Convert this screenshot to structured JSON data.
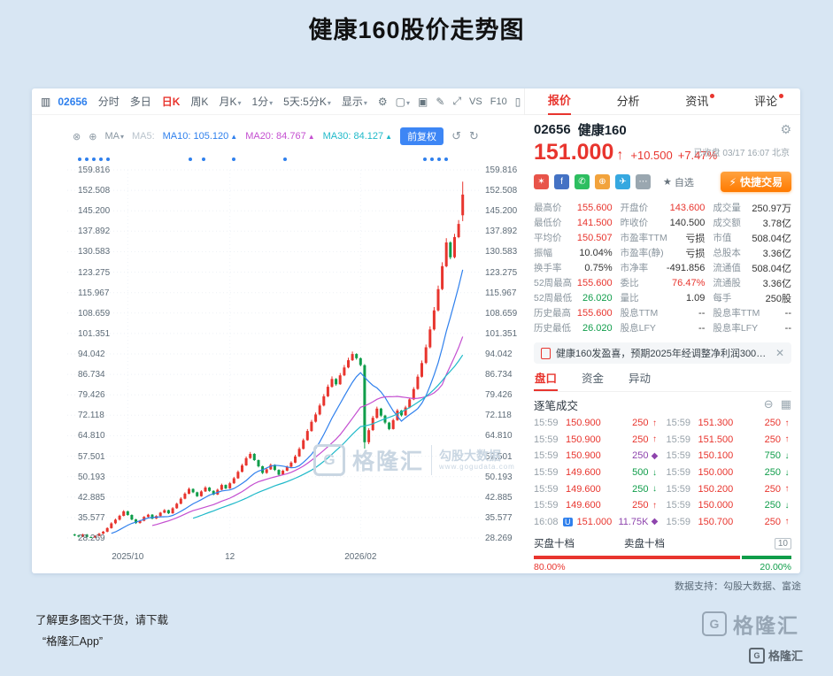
{
  "page": {
    "title": "健康160股价走势图"
  },
  "colors": {
    "red": "#e8352e",
    "green": "#0f9d4a",
    "blue": "#2f80ed",
    "purple": "#8e44ad",
    "orange": "#ff7a00"
  },
  "icons": {
    "window": "▥",
    "gear": "⚙",
    "box": "▢",
    "camera": "▣",
    "pencil": "✎",
    "expand": "⤢",
    "phone": "▯",
    "caret": "▾",
    "eye_a": "⊗",
    "eye_b": "⊕",
    "undo": "↺",
    "redo": "↻",
    "tri_up": "▲",
    "up_arrow": "↑",
    "minus_circle": "⊖",
    "grid": "▦",
    "close": "✕",
    "star": "★",
    "bolt": "⚡",
    "g_logo": "G"
  },
  "chart_toolbar": {
    "items": [
      {
        "label": "02656",
        "blue": true
      },
      {
        "label": "分时"
      },
      {
        "label": "多日"
      },
      {
        "label": "日K",
        "active": true
      },
      {
        "label": "周K"
      },
      {
        "label": "月K",
        "caret": true
      },
      {
        "label": "1分",
        "caret": true
      },
      {
        "label": "5天:5分K",
        "caret": true
      },
      {
        "label": "显示",
        "caret": true
      }
    ],
    "vs_label": "VS",
    "f10_label": "F10"
  },
  "right_tabs": [
    {
      "label": "报价",
      "active": true
    },
    {
      "label": "分析"
    },
    {
      "label": "资讯",
      "dot": true
    },
    {
      "label": "评论",
      "dot": true
    }
  ],
  "quote": {
    "code": "02656",
    "name": "健康160",
    "price": "151.000",
    "change": "+10.500",
    "change_pct": "+7.47%",
    "status": "已收盘 03/17 16:07 北京",
    "watchlist_label": "自选",
    "quick_trade_label": "快捷交易",
    "share_icons": [
      {
        "bg": "#e8544a",
        "glyph": "✶"
      },
      {
        "bg": "#4472c4",
        "glyph": "f"
      },
      {
        "bg": "#2dbe60",
        "glyph": "✆"
      },
      {
        "bg": "#f2a33c",
        "glyph": "⊕"
      },
      {
        "bg": "#36a8e0",
        "glyph": "✈"
      },
      {
        "bg": "#9aa7b0",
        "glyph": "⋯"
      }
    ],
    "stats_rows": [
      [
        {
          "l": "最高价",
          "v": "155.600",
          "c": "r"
        },
        {
          "l": "开盘价",
          "v": "143.600",
          "c": "r"
        },
        {
          "l": "成交量",
          "v": "250.97万",
          "c": "d"
        }
      ],
      [
        {
          "l": "最低价",
          "v": "141.500",
          "c": "r"
        },
        {
          "l": "昨收价",
          "v": "140.500",
          "c": "d"
        },
        {
          "l": "成交额",
          "v": "3.78亿",
          "c": "d"
        }
      ],
      [
        {
          "l": "平均价",
          "v": "150.507",
          "c": "r"
        },
        {
          "l": "市盈率TTM",
          "v": "亏损",
          "c": "d"
        },
        {
          "l": "市值",
          "v": "508.04亿",
          "c": "d"
        }
      ],
      [
        {
          "l": "振幅",
          "v": "10.04%",
          "c": "d"
        },
        {
          "l": "市盈率(静)",
          "v": "亏损",
          "c": "d"
        },
        {
          "l": "总股本",
          "v": "3.36亿",
          "c": "d"
        }
      ],
      [
        {
          "l": "换手率",
          "v": "0.75%",
          "c": "d"
        },
        {
          "l": "市净率",
          "v": "-491.856",
          "c": "d"
        },
        {
          "l": "流通值",
          "v": "508.04亿",
          "c": "d"
        }
      ],
      [
        {
          "l": "52周最高",
          "v": "155.600",
          "c": "r"
        },
        {
          "l": "委比",
          "v": "76.47%",
          "c": "r"
        },
        {
          "l": "流通股",
          "v": "3.36亿",
          "c": "d"
        }
      ],
      [
        {
          "l": "52周最低",
          "v": "26.020",
          "c": "g"
        },
        {
          "l": "量比",
          "v": "1.09",
          "c": "d"
        },
        {
          "l": "每手",
          "v": "250股",
          "c": "d"
        }
      ],
      [
        {
          "l": "历史最高",
          "v": "155.600",
          "c": "r"
        },
        {
          "l": "股息TTM",
          "v": "--",
          "c": "d"
        },
        {
          "l": "股息率TTM",
          "v": "--",
          "c": "d"
        }
      ],
      [
        {
          "l": "历史最低",
          "v": "26.020",
          "c": "g"
        },
        {
          "l": "股息LFY",
          "v": "--",
          "c": "d"
        },
        {
          "l": "股息率LFY",
          "v": "--",
          "c": "d"
        }
      ]
    ],
    "news": "健康160发盈喜，预期2025年经调整净利润300万…",
    "subtabs": [
      {
        "label": "盘口",
        "active": true
      },
      {
        "label": "资金"
      },
      {
        "label": "异动"
      }
    ],
    "trades_title": "逐笔成交",
    "trades_left": [
      {
        "t": "15:59",
        "p": "150.900",
        "v": "250",
        "d": "up"
      },
      {
        "t": "15:59",
        "p": "150.900",
        "v": "250",
        "d": "up"
      },
      {
        "t": "15:59",
        "p": "150.900",
        "v": "250",
        "d": "neutral"
      },
      {
        "t": "15:59",
        "p": "149.600",
        "v": "500",
        "d": "down"
      },
      {
        "t": "15:59",
        "p": "149.600",
        "v": "250",
        "d": "down"
      },
      {
        "t": "15:59",
        "p": "149.600",
        "v": "250",
        "d": "up"
      },
      {
        "t": "16:08",
        "badge": "U",
        "p": "151.000",
        "v": "11.75K",
        "d": "neutral"
      }
    ],
    "trades_right": [
      {
        "t": "15:59",
        "p": "151.300",
        "v": "250",
        "d": "up"
      },
      {
        "t": "15:59",
        "p": "151.500",
        "v": "250",
        "d": "up"
      },
      {
        "t": "15:59",
        "p": "150.100",
        "v": "750",
        "d": "down"
      },
      {
        "t": "15:59",
        "p": "150.000",
        "v": "250",
        "d": "down"
      },
      {
        "t": "15:59",
        "p": "150.200",
        "v": "250",
        "d": "up"
      },
      {
        "t": "15:59",
        "p": "150.000",
        "v": "250",
        "d": "down"
      },
      {
        "t": "15:59",
        "p": "150.700",
        "v": "250",
        "d": "up"
      }
    ],
    "depth": {
      "buy_label": "买盘十档",
      "sell_label": "卖盘十档",
      "levels_badge": "10",
      "buy_pct": "80.00%",
      "sell_pct": "20.00%",
      "buy_ratio": 0.8
    }
  },
  "chart_data": {
    "type": "candlestick",
    "title": "健康160股价走势图",
    "legend": {
      "ma_label": "MA",
      "ma5_label": "MA5:",
      "ma10_label": "MA10:",
      "ma10": "105.120",
      "ma20_label": "MA20:",
      "ma20": "84.767",
      "ma30_label": "MA30:",
      "ma30": "84.127",
      "adjust_label": "前复权"
    },
    "y_ticks": [
      "159.816",
      "152.508",
      "145.200",
      "137.892",
      "130.583",
      "123.275",
      "115.967",
      "108.659",
      "101.351",
      "94.042",
      "86.734",
      "79.426",
      "72.118",
      "64.810",
      "57.501",
      "50.193",
      "42.885",
      "35.577",
      "28.269"
    ],
    "y_max": 159.816,
    "y_min": 28.269,
    "x_ticks": [
      {
        "label": "2025/10",
        "i": 13
      },
      {
        "label": "12",
        "i": 38
      },
      {
        "label": "2026/02",
        "i": 70
      }
    ],
    "up_color": "#e8352e",
    "down_color": "#0f9d4a",
    "ma10_color": "#2f80ed",
    "ma20_color": "#c44fd0",
    "ma30_color": "#1fb9c9",
    "event_dots_frac": [
      0.026,
      0.043,
      0.06,
      0.077,
      0.094,
      0.293,
      0.325,
      0.398,
      0.522,
      0.86,
      0.877,
      0.894,
      0.911
    ],
    "candles": [
      [
        29.5,
        29.8,
        28.9,
        29.2
      ],
      [
        29.2,
        29.4,
        28.5,
        28.8
      ],
      [
        28.8,
        29.8,
        28.6,
        29.5
      ],
      [
        29.5,
        29.7,
        28.4,
        28.6
      ],
      [
        28.6,
        28.8,
        28.269,
        28.35
      ],
      [
        28.4,
        29.2,
        28.3,
        29.0
      ],
      [
        29.0,
        30.1,
        28.9,
        29.8
      ],
      [
        29.8,
        30.8,
        29.6,
        30.5
      ],
      [
        30.5,
        32.1,
        30.3,
        31.8
      ],
      [
        31.8,
        33.9,
        31.6,
        33.5
      ],
      [
        33.5,
        35.2,
        33.2,
        34.8
      ],
      [
        34.8,
        36.6,
        34.5,
        36.2
      ],
      [
        36.2,
        38.2,
        36.0,
        37.8
      ],
      [
        37.8,
        38.0,
        36.2,
        36.5
      ],
      [
        36.5,
        36.7,
        34.6,
        34.9
      ],
      [
        34.9,
        35.1,
        33.3,
        33.6
      ],
      [
        33.6,
        34.7,
        33.4,
        34.4
      ],
      [
        34.4,
        36.1,
        34.2,
        35.8
      ],
      [
        35.8,
        36.9,
        35.5,
        36.6
      ],
      [
        36.6,
        36.8,
        34.9,
        35.2
      ],
      [
        35.2,
        36.4,
        35.0,
        36.1
      ],
      [
        36.1,
        37.6,
        35.9,
        37.3
      ],
      [
        37.3,
        38.6,
        37.1,
        38.2
      ],
      [
        38.2,
        38.4,
        36.8,
        37.1
      ],
      [
        37.1,
        39.3,
        36.9,
        38.9
      ],
      [
        38.9,
        40.9,
        38.7,
        40.5
      ],
      [
        40.5,
        42.8,
        40.3,
        42.3
      ],
      [
        42.3,
        44.6,
        42.1,
        44.1
      ],
      [
        44.1,
        46.3,
        43.9,
        45.8
      ],
      [
        45.8,
        46.0,
        44.3,
        44.6
      ],
      [
        44.6,
        44.8,
        42.9,
        43.2
      ],
      [
        43.2,
        45.3,
        43.0,
        44.9
      ],
      [
        44.9,
        46.8,
        44.7,
        46.3
      ],
      [
        46.3,
        46.5,
        44.8,
        45.1
      ],
      [
        45.1,
        45.3,
        43.5,
        43.8
      ],
      [
        43.8,
        45.9,
        43.6,
        45.5
      ],
      [
        45.5,
        47.7,
        45.3,
        47.2
      ],
      [
        47.2,
        47.4,
        45.7,
        46.0
      ],
      [
        46.0,
        48.3,
        45.8,
        47.8
      ],
      [
        47.8,
        50.1,
        47.6,
        49.6
      ],
      [
        49.6,
        52.4,
        49.4,
        51.9
      ],
      [
        51.9,
        54.8,
        51.7,
        54.2
      ],
      [
        54.2,
        57.4,
        54.0,
        56.8
      ],
      [
        56.8,
        59.0,
        56.5,
        58.3
      ],
      [
        58.3,
        58.6,
        55.8,
        56.1
      ],
      [
        56.1,
        56.3,
        53.5,
        53.9
      ],
      [
        53.9,
        54.1,
        51.1,
        51.5
      ],
      [
        51.5,
        53.2,
        51.2,
        52.8
      ],
      [
        52.8,
        54.9,
        52.6,
        54.4
      ],
      [
        54.4,
        54.6,
        52.2,
        52.6
      ],
      [
        52.6,
        52.8,
        50.5,
        50.9
      ],
      [
        50.9,
        52.7,
        50.7,
        52.3
      ],
      [
        52.3,
        54.1,
        52.1,
        53.7
      ],
      [
        53.7,
        55.7,
        53.5,
        55.2
      ],
      [
        55.2,
        58.0,
        55.0,
        57.4
      ],
      [
        57.4,
        60.7,
        57.2,
        60.1
      ],
      [
        60.1,
        63.8,
        59.9,
        63.2
      ],
      [
        63.2,
        67.2,
        63.0,
        66.5
      ],
      [
        66.5,
        70.5,
        66.2,
        69.8
      ],
      [
        69.8,
        73.1,
        69.5,
        72.4
      ],
      [
        72.4,
        76.3,
        72.1,
        75.6
      ],
      [
        75.6,
        79.7,
        75.3,
        78.9
      ],
      [
        78.9,
        83.1,
        78.6,
        82.3
      ],
      [
        82.3,
        86.0,
        82.0,
        85.1
      ],
      [
        85.1,
        85.4,
        82.7,
        83.2
      ],
      [
        83.2,
        87.2,
        83.0,
        86.4
      ],
      [
        86.4,
        90.1,
        86.1,
        89.2
      ],
      [
        89.2,
        92.7,
        88.9,
        91.8
      ],
      [
        91.8,
        94.9,
        91.5,
        94.0
      ],
      [
        94.0,
        94.3,
        92.0,
        92.5
      ],
      [
        92.5,
        92.8,
        89.6,
        90.1
      ],
      [
        90.0,
        90.4,
        60.2,
        62.5
      ],
      [
        62.5,
        67.5,
        61.8,
        66.8
      ],
      [
        66.8,
        71.9,
        66.5,
        71.2
      ],
      [
        71.2,
        75.2,
        70.9,
        74.5
      ],
      [
        74.5,
        74.8,
        71.5,
        72.0
      ],
      [
        72.0,
        72.3,
        69.0,
        69.5
      ],
      [
        69.5,
        69.8,
        66.8,
        67.2
      ],
      [
        67.2,
        70.9,
        67.0,
        70.4
      ],
      [
        70.4,
        74.4,
        70.1,
        73.8
      ],
      [
        73.8,
        74.0,
        71.7,
        72.1
      ],
      [
        72.1,
        75.5,
        71.9,
        74.9
      ],
      [
        74.9,
        78.4,
        74.6,
        77.8
      ],
      [
        77.8,
        82.2,
        77.5,
        81.5
      ],
      [
        81.5,
        86.7,
        81.2,
        85.9
      ],
      [
        85.9,
        91.7,
        85.6,
        90.8
      ],
      [
        90.8,
        97.4,
        90.4,
        96.4
      ],
      [
        96.4,
        103.9,
        96.0,
        102.8
      ],
      [
        102.8,
        110.8,
        102.4,
        109.6
      ],
      [
        109.6,
        118.5,
        109.2,
        117.2
      ],
      [
        117.2,
        126.8,
        116.8,
        125.4
      ],
      [
        125.4,
        135.4,
        125.0,
        133.9
      ],
      [
        133.9,
        134.3,
        127.9,
        128.6
      ],
      [
        128.6,
        137.0,
        128.2,
        135.8
      ],
      [
        135.8,
        141.9,
        135.4,
        140.5
      ],
      [
        143.6,
        155.6,
        141.5,
        151.0
      ]
    ]
  },
  "watermark": {
    "g": "G",
    "brand": "格隆汇",
    "partner": "勾股大数据",
    "url": "www.gogudata.com"
  },
  "footer": {
    "data_support": "数据支持：勾股大数据、富途",
    "promo_line1": "了解更多图文干货，请下载",
    "promo_line2": "“格隆汇App”",
    "brand_name": "格隆汇"
  }
}
